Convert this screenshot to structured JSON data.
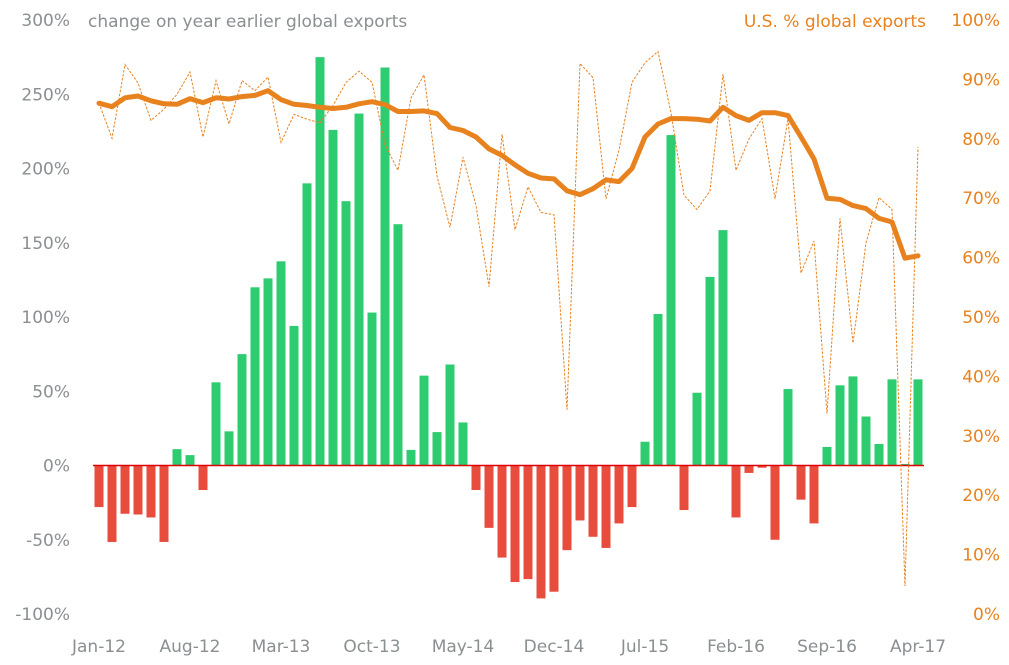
{
  "chart_data": {
    "type": "bar+line",
    "left_title": "change on year earlier global exports",
    "right_title": "U.S. % global exports",
    "left_axis": {
      "ticks": [
        "300%",
        "250%",
        "200%",
        "150%",
        "100%",
        "50%",
        "0%",
        "-50%",
        "-100%"
      ],
      "ylim": [
        -100,
        300
      ]
    },
    "right_axis": {
      "ticks": [
        "100%",
        "90%",
        "80%",
        "70%",
        "60%",
        "50%",
        "40%",
        "30%",
        "20%",
        "10%",
        "0%"
      ],
      "ylim": [
        0,
        100
      ]
    },
    "x_tick_labels": [
      "Jan-12",
      "Aug-12",
      "Mar-13",
      "Oct-13",
      "May-14",
      "Dec-14",
      "Jul-15",
      "Feb-16",
      "Sep-16",
      "Apr-17"
    ],
    "x_start": "Jan-12",
    "x_end": "Apr-17",
    "frequency": "monthly",
    "grid": false,
    "colors": {
      "positive": "#2ecc71",
      "negative": "#e74c3c",
      "line": "#e8821e",
      "zero_line": "#e00000",
      "left_text": "#8a8f92",
      "right_text": "#e8821e"
    },
    "bars_change_yoy_pct": [
      -28,
      -51.5,
      -32.5,
      -33,
      -35,
      -51.5,
      11,
      7,
      -16.5,
      56,
      23,
      75,
      120,
      126,
      137.5,
      94,
      190,
      275,
      226,
      178,
      237,
      103,
      268,
      162.5,
      10.5,
      60.5,
      22.5,
      68,
      29,
      -16.5,
      -42,
      -62,
      -78.5,
      -76.5,
      -89.5,
      -85,
      -57,
      -37,
      -48,
      -55.5,
      -39,
      -28,
      16,
      102,
      222.5,
      -30,
      49,
      127,
      158.5,
      -35,
      -5,
      -1.5,
      -50,
      51.5,
      -23,
      -39,
      12.5,
      54,
      60,
      33,
      14.5,
      58,
      1,
      58
    ],
    "us_share_smoothed_pct": [
      86,
      85.4,
      86.9,
      87.2,
      86.4,
      85.9,
      85.8,
      86.75,
      86.1,
      86.9,
      86.7,
      87.1,
      87.3,
      88.1,
      86.6,
      85.8,
      85.6,
      85.3,
      85.1,
      85.3,
      85.9,
      86.25,
      85.75,
      84.6,
      84.6,
      84.7,
      84.25,
      81.9,
      81.4,
      80.3,
      78.3,
      77.2,
      75.6,
      74.2,
      73.4,
      73.25,
      71.25,
      70.6,
      71.6,
      73.1,
      72.8,
      75,
      80.3,
      82.5,
      83.4,
      83.4,
      83.3,
      83,
      85.3,
      83.9,
      83.1,
      84.4,
      84.4,
      83.9,
      80.3,
      76.6,
      70,
      69.8,
      68.75,
      68.25,
      66.6,
      66,
      59.9,
      60.3
    ],
    "us_share_monthly_pct": [
      86,
      80.1,
      92.5,
      89.4,
      83.1,
      85,
      87.5,
      91.25,
      80.3,
      89.8,
      82.5,
      89.8,
      88.1,
      90.4,
      79.4,
      84.1,
      83.3,
      82.7,
      85.6,
      89.5,
      91.4,
      89.5,
      79,
      74.7,
      86.9,
      90.75,
      73.75,
      65.1,
      76.9,
      68.75,
      55.1,
      80.75,
      64.7,
      71.9,
      67.6,
      67.2,
      34.4,
      92.7,
      90.3,
      69.9,
      78.1,
      89.5,
      92.8,
      94.7,
      84.4,
      70.5,
      68.1,
      71.25,
      90.9,
      74.7,
      80,
      83.4,
      69.9,
      83.4,
      57.4,
      62.8,
      33.75,
      66.6,
      45.6,
      62.5,
      70.1,
      68.1,
      4.7,
      78.6
    ]
  }
}
